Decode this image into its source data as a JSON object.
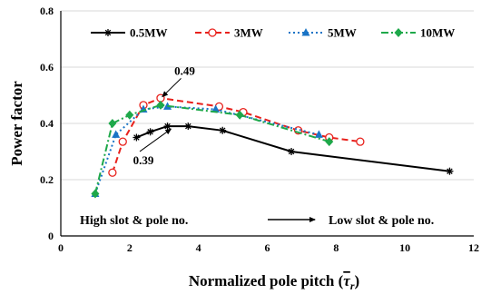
{
  "chart_data": {
    "type": "line",
    "xlabel": "Normalized pole pitch (",
    "xlabel_symbol": "τ",
    "xlabel_sub": "r",
    "xlabel_close": ")",
    "ylabel": "Power factor",
    "xlim": [
      0,
      12
    ],
    "ylim": [
      0,
      0.8
    ],
    "xticks": [
      "0",
      "2",
      "4",
      "6",
      "8",
      "10",
      "12"
    ],
    "yticks": [
      "0",
      "0.2",
      "0.4",
      "0.6",
      "0.8"
    ],
    "grid": "horizontal",
    "legend_position": "top",
    "series": [
      {
        "name": "0.5MW",
        "color": "#000000",
        "dash": "solid",
        "marker": "asterisk",
        "x": [
          2.2,
          2.6,
          3.1,
          3.7,
          4.7,
          6.7,
          11.3
        ],
        "y": [
          0.35,
          0.37,
          0.39,
          0.39,
          0.375,
          0.3,
          0.23
        ]
      },
      {
        "name": "3MW",
        "color": "#e8211c",
        "dash": "dashed",
        "marker": "open-circle",
        "x": [
          1.5,
          1.8,
          2.4,
          2.9,
          4.6,
          5.3,
          6.9,
          7.8,
          8.7
        ],
        "y": [
          0.225,
          0.335,
          0.465,
          0.49,
          0.46,
          0.44,
          0.375,
          0.35,
          0.335
        ]
      },
      {
        "name": "5MW",
        "color": "#1a74c6",
        "dash": "dotted",
        "marker": "triangle",
        "x": [
          1.0,
          1.6,
          2.4,
          3.1,
          4.5,
          7.5
        ],
        "y": [
          0.15,
          0.36,
          0.45,
          0.46,
          0.45,
          0.36
        ]
      },
      {
        "name": "10MW",
        "color": "#1ea84a",
        "dash": "dashdot",
        "marker": "diamond",
        "x": [
          1.0,
          1.5,
          2.0,
          2.9,
          5.2,
          7.8
        ],
        "y": [
          0.15,
          0.4,
          0.43,
          0.465,
          0.43,
          0.335
        ]
      }
    ],
    "annotations": [
      {
        "text": "0.49",
        "x": 3.6,
        "y": 0.573,
        "arrow_to": [
          2.95,
          0.495
        ]
      },
      {
        "text": "0.39",
        "x": 2.4,
        "y": 0.255,
        "arrow_to": [
          3.2,
          0.38
        ]
      }
    ],
    "note": {
      "left": "High slot & pole no.",
      "right": "Low slot & pole no."
    }
  }
}
